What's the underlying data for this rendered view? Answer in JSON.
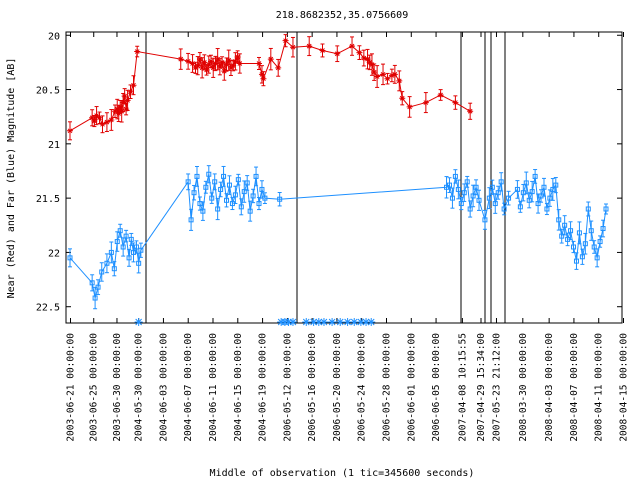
{
  "chart_data": {
    "type": "line",
    "title": "218.8682352,35.0756609",
    "xlabel": "Middle of observation (1 tic=345600 seconds)",
    "ylabel": "Near (Red) and Far (Blue) Magnitude [AB]",
    "y_inverted": true,
    "ylim": [
      22.65,
      19.97
    ],
    "yticks": [
      "20",
      "20.5",
      "21",
      "21.5",
      "22",
      "22.5"
    ],
    "xticks": [
      "2003-06-21 00:00:00",
      "2003-06-25 00:00:00",
      "2003-06-30 00:00:00",
      "2004-05-30 00:00:00",
      "2004-06-03 00:00:00",
      "2004-06-07 00:00:00",
      "2004-06-11 00:00:00",
      "2004-06-15 00:00:00",
      "2004-06-19 00:00:00",
      "2006-05-12 00:00:00",
      "2006-05-16 00:00:00",
      "2006-05-20 00:00:00",
      "2006-05-24 00:00:00",
      "2006-05-28 00:00:00",
      "2006-06-01 00:00:00",
      "2006-06-05 00:00:00",
      "2007-04-08 10:15:55",
      "2007-04-29 15:34:00",
      "2007-05-23 21:12:00",
      "2008-03-30 00:00:00",
      "2008-04-03 00:00:00",
      "2008-04-07 00:00:00",
      "2008-04-11 00:00:00",
      "2008-04-15 00:00:00"
    ],
    "grid": false,
    "series": [
      {
        "color": "#e00000",
        "marker": "star",
        "x": [
          0,
          3.0,
          3.3,
          3.6,
          4.0,
          4.4,
          5.0,
          5.6,
          6.1,
          6.4,
          6.6,
          6.8,
          7.0,
          7.2,
          7.4,
          7.6,
          7.8,
          8.2,
          8.6,
          9.1,
          15.0,
          16.0,
          16.6,
          17.0,
          17.3,
          17.6,
          17.9,
          18.2,
          18.5,
          18.8,
          19.1,
          19.4,
          19.7,
          20.0,
          20.3,
          20.6,
          20.9,
          21.2,
          21.5,
          21.8,
          22.1,
          22.4,
          22.7,
          23.0,
          25.6,
          26.0,
          26.2,
          27.2,
          28.2,
          29.2,
          30.2,
          32.4,
          34.2,
          36.2,
          38.2,
          39.2,
          39.8,
          40.3,
          40.6,
          40.9,
          41.2,
          41.6,
          42.4,
          43.0,
          43.6,
          44.0,
          44.6,
          45.0,
          46.0,
          48.2,
          50.2,
          52.2,
          54.2
        ],
        "y": [
          20.88,
          20.76,
          20.79,
          20.74,
          20.76,
          20.82,
          20.8,
          20.78,
          20.7,
          20.68,
          20.72,
          20.66,
          20.7,
          20.62,
          20.56,
          20.68,
          20.6,
          20.52,
          20.46,
          20.15,
          20.22,
          20.24,
          20.26,
          20.3,
          20.28,
          20.22,
          20.3,
          20.25,
          20.32,
          20.27,
          20.24,
          20.3,
          20.26,
          20.22,
          20.29,
          20.25,
          20.33,
          20.27,
          20.23,
          20.3,
          20.28,
          20.24,
          20.2,
          20.26,
          20.26,
          20.36,
          20.4,
          20.22,
          20.3,
          20.05,
          20.11,
          20.1,
          20.14,
          20.17,
          20.1,
          20.16,
          20.21,
          20.22,
          20.25,
          20.27,
          20.34,
          20.38,
          20.36,
          20.4,
          20.37,
          20.36,
          20.42,
          20.58,
          20.66,
          20.62,
          20.55,
          20.62,
          20.7
        ]
      },
      {
        "color": "#1e90ff",
        "marker": "square",
        "x": [
          0,
          3.0,
          3.4,
          3.8,
          4.3,
          5.0,
          5.6,
          6.0,
          6.4,
          6.8,
          7.2,
          7.6,
          8.0,
          8.3,
          8.6,
          9.0,
          9.3,
          9.6,
          16.0,
          16.4,
          16.8,
          17.2,
          17.6,
          18.0,
          18.4,
          18.8,
          19.2,
          19.6,
          20.0,
          20.4,
          20.8,
          21.2,
          21.6,
          22.0,
          22.4,
          22.8,
          23.2,
          23.6,
          24.0,
          24.4,
          24.8,
          25.2,
          25.6,
          26.0,
          26.4,
          28.4,
          51.0,
          51.4,
          51.8,
          52.2,
          52.6,
          53.0,
          53.4,
          53.8,
          54.2,
          54.6,
          55.0,
          55.4,
          56.2,
          56.8,
          57.2,
          57.6,
          58.0,
          58.4,
          58.8,
          59.4,
          60.6,
          61.0,
          61.4,
          61.8,
          62.2,
          62.6,
          63.0,
          63.4,
          63.8,
          64.2,
          64.6,
          65.0,
          65.4,
          65.8,
          66.2,
          66.6,
          67.0,
          67.4,
          67.8,
          68.2,
          68.6,
          69.0,
          69.4,
          69.8,
          70.2,
          70.6,
          71.0,
          71.4,
          71.8,
          72.2,
          72.6
        ],
        "y": [
          22.05,
          22.28,
          22.42,
          22.32,
          22.18,
          22.1,
          22.0,
          22.15,
          21.9,
          21.8,
          21.95,
          21.85,
          22.05,
          21.88,
          22.0,
          21.95,
          22.1,
          21.98,
          21.35,
          21.7,
          21.45,
          21.3,
          21.55,
          21.62,
          21.4,
          21.28,
          21.5,
          21.35,
          21.6,
          21.42,
          21.3,
          21.52,
          21.38,
          21.55,
          21.47,
          21.33,
          21.58,
          21.44,
          21.36,
          21.62,
          21.48,
          21.3,
          21.55,
          21.42,
          21.5,
          21.51,
          21.4,
          21.38,
          21.5,
          21.3,
          21.42,
          21.55,
          21.45,
          21.35,
          21.6,
          21.48,
          21.4,
          21.52,
          21.7,
          21.5,
          21.4,
          21.55,
          21.45,
          21.35,
          21.6,
          21.5,
          21.42,
          21.58,
          21.45,
          21.36,
          21.52,
          21.44,
          21.3,
          21.55,
          21.48,
          21.4,
          21.6,
          21.5,
          21.42,
          21.38,
          21.7,
          21.85,
          21.75,
          21.88,
          21.8,
          21.95,
          22.08,
          21.82,
          22.04,
          21.92,
          21.6,
          21.8,
          21.95,
          22.05,
          21.9,
          21.78,
          21.6
        ]
      }
    ],
    "upper_limits_row": [
      9.3,
      28.6,
      29.1,
      29.6,
      30.2,
      32.0,
      33.0,
      33.7,
      34.4,
      35.5,
      36.6,
      37.6,
      38.5,
      39.4,
      40.1,
      40.8
    ]
  }
}
